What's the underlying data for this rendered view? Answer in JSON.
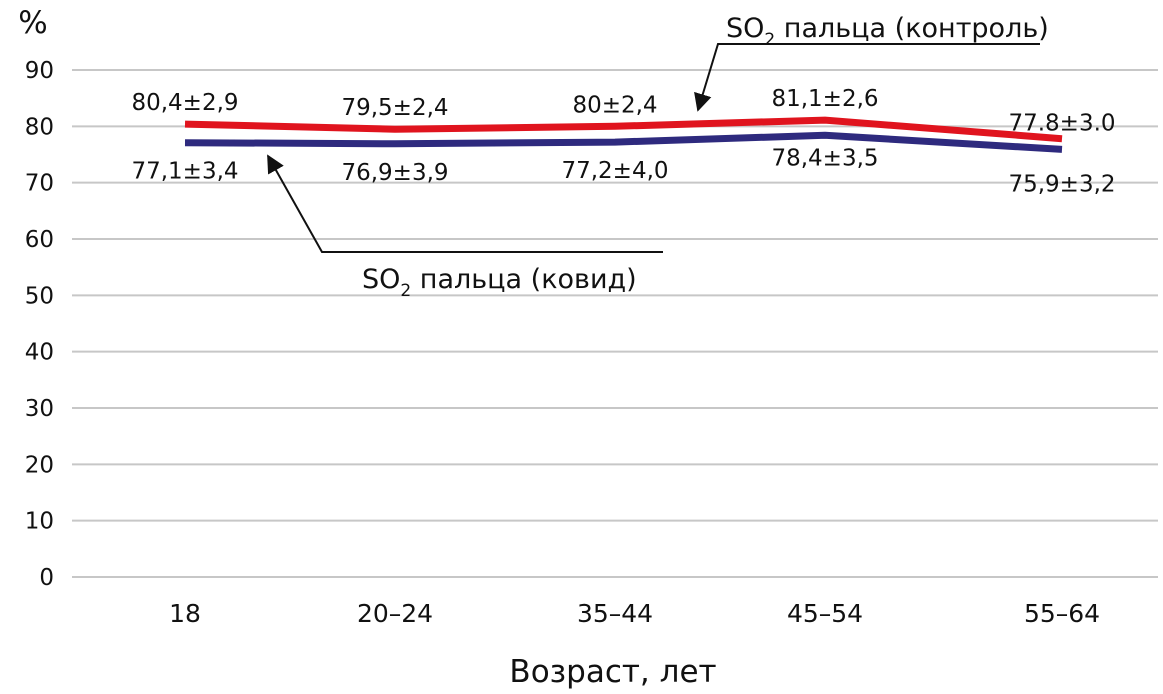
{
  "chart_data": {
    "type": "line",
    "ylabel": "%",
    "xlabel": "Возраст, лет",
    "ylim": [
      0,
      90
    ],
    "yticks": [
      0,
      10,
      20,
      30,
      40,
      50,
      60,
      70,
      80,
      90
    ],
    "grid": true,
    "categories": [
      "18",
      "20–24",
      "35–44",
      "45–54",
      "55–64"
    ],
    "series": [
      {
        "name": "SO2 пальца (контроль)",
        "color": "#e0141e",
        "values": [
          80.4,
          79.5,
          80.0,
          81.1,
          77.8
        ],
        "labels": [
          "80,4±2,9",
          "79,5±2,4",
          "80±2,4",
          "81,1±2,6",
          "77.8±3.0"
        ]
      },
      {
        "name": "SO2 пальца (ковид)",
        "color": "#2e2a7e",
        "values": [
          77.1,
          76.9,
          77.2,
          78.4,
          75.9
        ],
        "labels": [
          "77,1±3,4",
          "76,9±3,9",
          "77,2±4,0",
          "78,4±3,5",
          "75,9±3,2"
        ]
      }
    ],
    "annotations": [
      {
        "series": 0,
        "text_main": "SO",
        "text_sub": "2",
        "text_rest": " пальца (контроль)"
      },
      {
        "series": 1,
        "text_main": "SO",
        "text_sub": "2",
        "text_rest": " пальца (ковид)"
      }
    ]
  }
}
